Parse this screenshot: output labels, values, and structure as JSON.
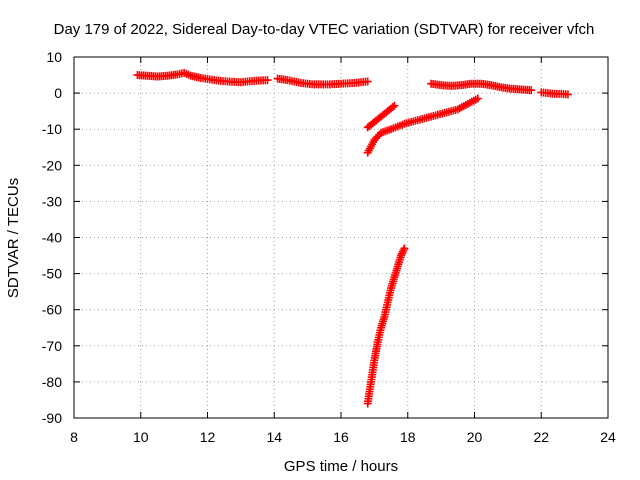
{
  "chart_data": {
    "type": "scatter",
    "title": "Day 179 of 2022, Sidereal Day-to-day VTEC variation (SDTVAR) for receiver vfch",
    "xlabel": "GPS time / hours",
    "ylabel": "SDTVAR / TECUs",
    "xlim": [
      8,
      24
    ],
    "ylim": [
      -90,
      10
    ],
    "xticks": [
      8,
      10,
      12,
      14,
      16,
      18,
      20,
      22,
      24
    ],
    "yticks": [
      10,
      0,
      -10,
      -20,
      -30,
      -40,
      -50,
      -60,
      -70,
      -80,
      -90
    ],
    "grid": true,
    "marker": "plus",
    "color": "#ff0000",
    "series": [
      {
        "points": [
          [
            9.9,
            5.0
          ],
          [
            10.2,
            4.8
          ],
          [
            10.5,
            4.6
          ],
          [
            10.8,
            4.8
          ],
          [
            11.1,
            5.2
          ],
          [
            11.3,
            5.6
          ],
          [
            11.5,
            4.8
          ],
          [
            11.8,
            4.2
          ],
          [
            12.2,
            3.6
          ],
          [
            12.6,
            3.2
          ],
          [
            13.0,
            3.0
          ],
          [
            13.4,
            3.4
          ],
          [
            13.8,
            3.6
          ]
        ]
      },
      {
        "points": [
          [
            14.1,
            4.0
          ],
          [
            14.4,
            3.6
          ],
          [
            14.8,
            2.8
          ],
          [
            15.2,
            2.4
          ],
          [
            15.6,
            2.4
          ],
          [
            16.0,
            2.6
          ],
          [
            16.4,
            2.8
          ],
          [
            16.8,
            3.2
          ]
        ]
      },
      {
        "points": [
          [
            16.8,
            -9.5
          ],
          [
            17.0,
            -8.0
          ],
          [
            17.2,
            -6.5
          ],
          [
            17.4,
            -5.0
          ],
          [
            17.6,
            -3.5
          ]
        ]
      },
      {
        "points": [
          [
            16.8,
            -16.5
          ],
          [
            17.0,
            -13.0
          ],
          [
            17.2,
            -11.0
          ],
          [
            17.5,
            -10.0
          ],
          [
            17.9,
            -8.5
          ],
          [
            18.3,
            -7.5
          ],
          [
            18.7,
            -6.5
          ],
          [
            19.1,
            -5.5
          ],
          [
            19.5,
            -4.5
          ],
          [
            19.8,
            -3.0
          ],
          [
            20.1,
            -1.5
          ]
        ]
      },
      {
        "points": [
          [
            16.8,
            -86.0
          ],
          [
            16.9,
            -80.0
          ],
          [
            17.0,
            -74.0
          ],
          [
            17.1,
            -69.0
          ],
          [
            17.2,
            -65.0
          ],
          [
            17.3,
            -62.0
          ],
          [
            17.4,
            -58.0
          ],
          [
            17.5,
            -54.0
          ],
          [
            17.6,
            -51.0
          ],
          [
            17.7,
            -48.0
          ],
          [
            17.8,
            -45.0
          ],
          [
            17.9,
            -43.0
          ]
        ]
      },
      {
        "points": [
          [
            18.7,
            2.6
          ],
          [
            19.0,
            2.2
          ],
          [
            19.3,
            2.0
          ],
          [
            19.6,
            2.2
          ],
          [
            19.9,
            2.6
          ],
          [
            20.2,
            2.6
          ],
          [
            20.5,
            2.2
          ],
          [
            20.8,
            1.6
          ],
          [
            21.1,
            1.2
          ],
          [
            21.4,
            1.0
          ],
          [
            21.7,
            0.8
          ]
        ]
      },
      {
        "points": [
          [
            22.0,
            0.2
          ],
          [
            22.2,
            0.0
          ],
          [
            22.4,
            -0.2
          ],
          [
            22.6,
            -0.2
          ],
          [
            22.8,
            -0.4
          ]
        ]
      }
    ]
  }
}
